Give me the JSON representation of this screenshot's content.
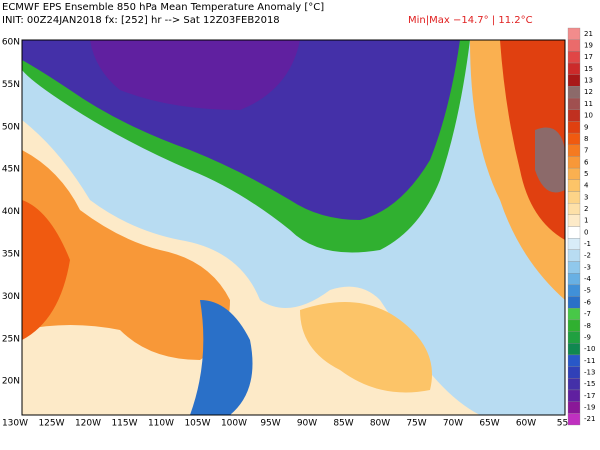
{
  "header": {
    "title": "ECMWF EPS Ensemble 850 hPa Mean Temperature Anomaly [°C]",
    "init": "INIT: 00Z24JAN2018 fx: [252] hr --> Sat 12Z03FEB2018",
    "minmax": "Min|Max −14.7° | 11.2°C"
  },
  "map": {
    "lat_labels": [
      "60N",
      "55N",
      "50N",
      "45N",
      "40N",
      "35N",
      "30N",
      "25N",
      "20N"
    ],
    "lon_labels": [
      "130W",
      "125W",
      "120W",
      "115W",
      "110W",
      "105W",
      "100W",
      "95W",
      "90W",
      "85W",
      "80W",
      "75W",
      "70W",
      "65W",
      "60W",
      "55"
    ]
  },
  "colorbar": {
    "labels": [
      21,
      19,
      17,
      15,
      13,
      12,
      11,
      10,
      9,
      8,
      7,
      6,
      5,
      4,
      3,
      2,
      1,
      0,
      -1,
      -2,
      -3,
      -4,
      -5,
      -6,
      -7,
      -8,
      -9,
      -10,
      -11,
      -13,
      -15,
      -17,
      -19,
      -21
    ],
    "colors": [
      "#f28c8c",
      "#ea6b6b",
      "#e04646",
      "#cc2a2a",
      "#a81818",
      "#8c6a6a",
      "#a05050",
      "#c03020",
      "#e04010",
      "#f05a10",
      "#f57a20",
      "#f89838",
      "#fab050",
      "#fcc468",
      "#fdd488",
      "#fde0a8",
      "#fdeac8",
      "#ffffff",
      "#d8ecf8",
      "#b8dcf2",
      "#90c8ec",
      "#68b0e4",
      "#4090d8",
      "#2a70c8",
      "#48c848",
      "#30b030",
      "#20a040",
      "#108850",
      "#2858c8",
      "#3040b8",
      "#4430a8",
      "#6020a0",
      "#8a1898",
      "#c030c0"
    ]
  }
}
